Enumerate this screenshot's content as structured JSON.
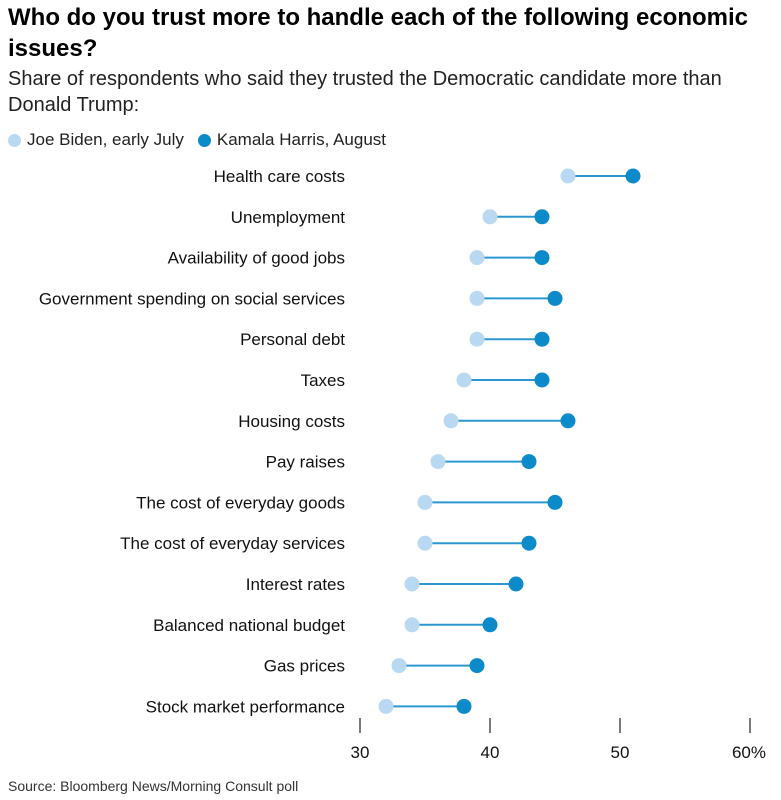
{
  "title": "Who do you trust more to handle each of the following economic issues?",
  "subtitle": "Share of respondents who said they trusted the Democratic candidate more than Donald Trump:",
  "source": "Source: Bloomberg News/Morning Consult poll",
  "colors": {
    "biden": "#b9d8f2",
    "harris": "#0d8ac9",
    "connector": "#2a97d0",
    "axis": "#222222"
  },
  "chart_data": {
    "type": "dot",
    "categories": [
      "Health care costs",
      "Unemployment",
      "Availability of good jobs",
      "Government spending on social services",
      "Personal debt",
      "Taxes",
      "Housing costs",
      "Pay raises",
      "The cost of everyday goods",
      "The cost of everyday services",
      "Interest rates",
      "Balanced national budget",
      "Gas prices",
      "Stock market performance"
    ],
    "series": [
      {
        "name": "Joe Biden, early July",
        "values": [
          46,
          40,
          39,
          39,
          39,
          38,
          37,
          36,
          35,
          35,
          34,
          34,
          33,
          32
        ]
      },
      {
        "name": "Kamala Harris, August",
        "values": [
          51,
          44,
          44,
          45,
          44,
          44,
          46,
          43,
          45,
          43,
          42,
          40,
          39,
          38
        ]
      }
    ],
    "xlim": [
      30,
      60
    ],
    "xticks": [
      30,
      40,
      50,
      60
    ],
    "xtick_labels": [
      "30",
      "40",
      "50",
      "60%"
    ],
    "legend_position": "top-left",
    "grid": false
  }
}
